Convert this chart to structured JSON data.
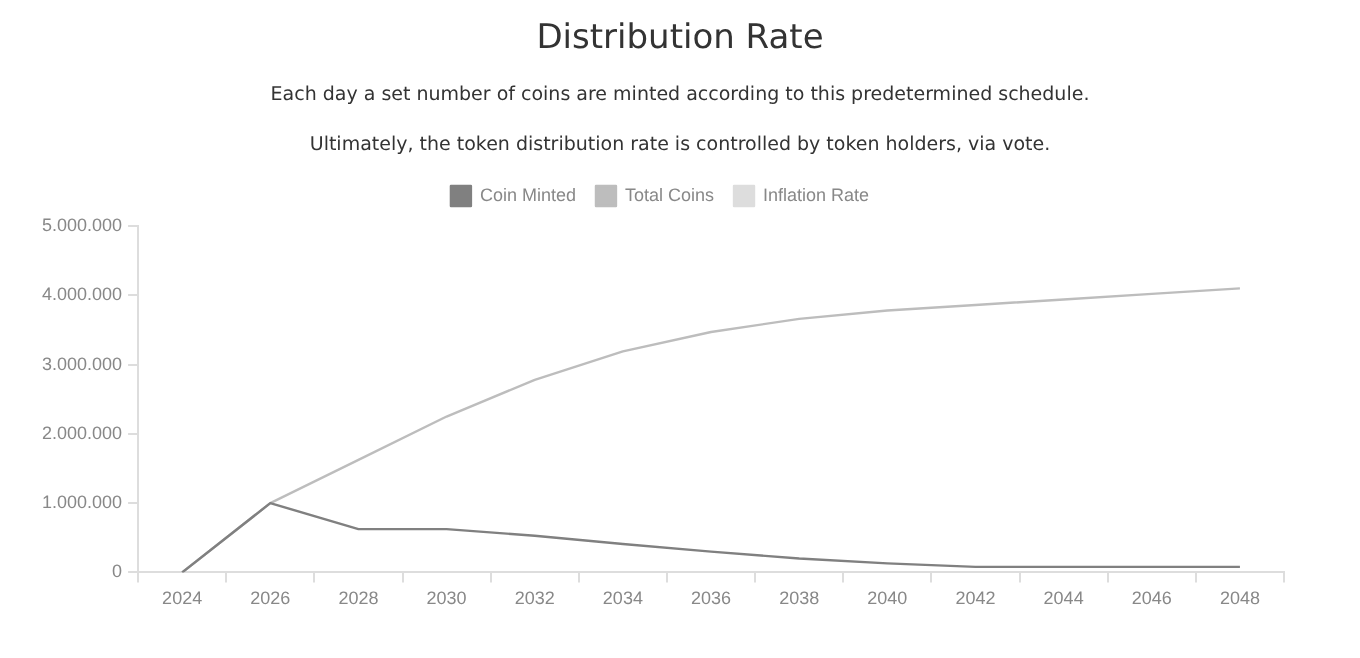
{
  "chart_data": {
    "type": "line",
    "title": "Distribution Rate",
    "subtitle": "Each day a set number of coins are minted according to this predetermined schedule.",
    "annotations": [
      "Ultimately, the token distribution rate is controlled by token holders, via vote."
    ],
    "categories": [
      "2024",
      "2026",
      "2028",
      "2030",
      "2032",
      "2034",
      "2036",
      "2038",
      "2040",
      "2042",
      "2044",
      "2046",
      "2048"
    ],
    "series": [
      {
        "name": "Coin Minted",
        "color": "#808080",
        "values": [
          0,
          1000000,
          625000,
          625000,
          530000,
          410000,
          300000,
          200000,
          130000,
          80000,
          80000,
          80000,
          80000
        ]
      },
      {
        "name": "Total Coins",
        "color": "#bdbdbd",
        "values": [
          0,
          1000000,
          1625000,
          2250000,
          2780000,
          3190000,
          3470000,
          3660000,
          3780000,
          3860000,
          3940000,
          4020000,
          4100000
        ]
      },
      {
        "name": "Inflation Rate",
        "color": "#dddddd",
        "values": [
          null,
          null,
          null,
          null,
          null,
          null,
          null,
          null,
          null,
          null,
          null,
          null,
          null
        ]
      }
    ],
    "ylim": [
      0,
      5000000
    ],
    "yticks": [
      {
        "value": 0,
        "label": "0"
      },
      {
        "value": 1000000,
        "label": "1.000.000"
      },
      {
        "value": 2000000,
        "label": "2.000.000"
      },
      {
        "value": 3000000,
        "label": "3.000.000"
      },
      {
        "value": 4000000,
        "label": "4.000.000"
      },
      {
        "value": 5000000,
        "label": "5.000.000"
      }
    ],
    "grid": false,
    "legend": "top"
  }
}
